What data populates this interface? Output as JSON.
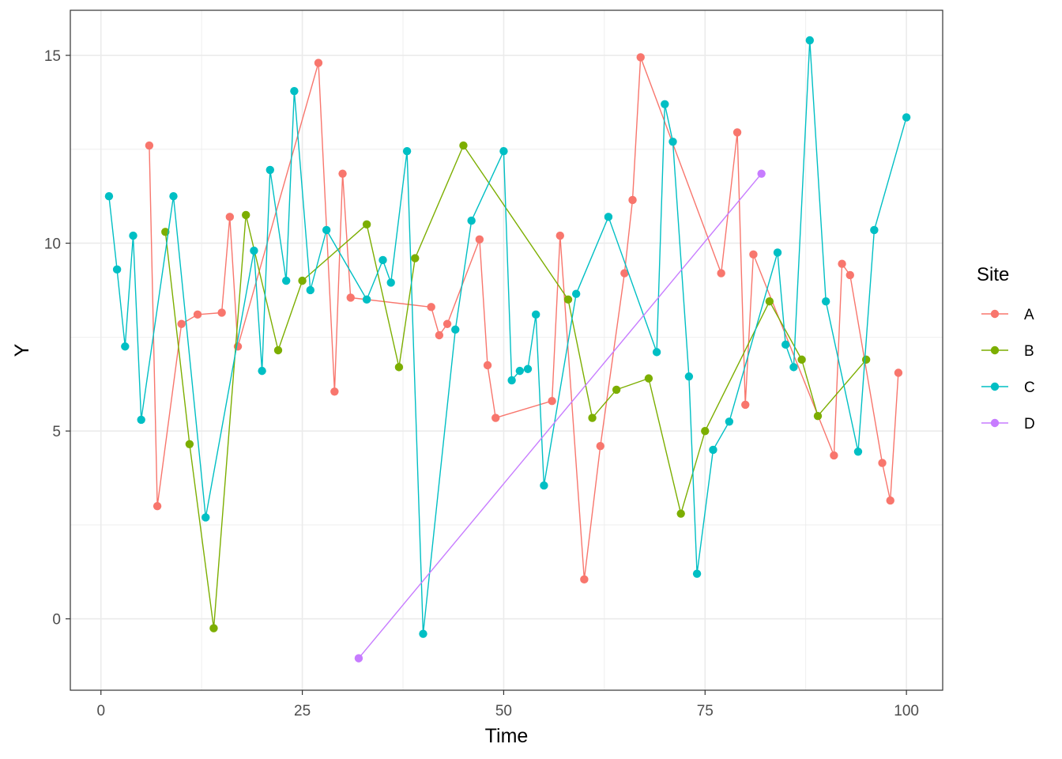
{
  "chart_data": {
    "type": "line",
    "xlabel": "Time",
    "ylabel": "Y",
    "xlim": [
      -3.8,
      104.5
    ],
    "ylim": [
      -1.9,
      16.2
    ],
    "x_ticks": [
      0,
      25,
      50,
      75,
      100
    ],
    "y_ticks": [
      0,
      5,
      10,
      15
    ],
    "grid": true,
    "legend": {
      "title": "Site",
      "position": "right"
    },
    "series": [
      {
        "name": "A",
        "color": "#F8766D",
        "points": [
          [
            6,
            12.6
          ],
          [
            7,
            3.0
          ],
          [
            10,
            7.85
          ],
          [
            12,
            8.1
          ],
          [
            15,
            8.15
          ],
          [
            16,
            10.7
          ],
          [
            17,
            7.25
          ],
          [
            27,
            14.8
          ],
          [
            29,
            6.05
          ],
          [
            30,
            11.85
          ],
          [
            31,
            8.55
          ],
          [
            41,
            8.3
          ],
          [
            42,
            7.55
          ],
          [
            43,
            7.85
          ],
          [
            47,
            10.1
          ],
          [
            48,
            6.75
          ],
          [
            49,
            5.35
          ],
          [
            56,
            5.8
          ],
          [
            57,
            10.2
          ],
          [
            60,
            1.05
          ],
          [
            62,
            4.6
          ],
          [
            65,
            9.2
          ],
          [
            66,
            11.15
          ],
          [
            67,
            14.95
          ],
          [
            77,
            9.2
          ],
          [
            79,
            12.95
          ],
          [
            80,
            5.7
          ],
          [
            81,
            9.7
          ],
          [
            91,
            4.35
          ],
          [
            92,
            9.45
          ],
          [
            93,
            9.15
          ],
          [
            97,
            4.15
          ],
          [
            98,
            3.15
          ],
          [
            99,
            6.55
          ]
        ]
      },
      {
        "name": "B",
        "color": "#7CAE00",
        "points": [
          [
            8,
            10.3
          ],
          [
            11,
            4.65
          ],
          [
            14,
            -0.25
          ],
          [
            18,
            10.75
          ],
          [
            22,
            7.15
          ],
          [
            25,
            9.0
          ],
          [
            33,
            10.5
          ],
          [
            37,
            6.7
          ],
          [
            39,
            9.6
          ],
          [
            45,
            12.6
          ],
          [
            58,
            8.5
          ],
          [
            61,
            5.35
          ],
          [
            64,
            6.1
          ],
          [
            68,
            6.4
          ],
          [
            72,
            2.8
          ],
          [
            75,
            5.0
          ],
          [
            83,
            8.45
          ],
          [
            87,
            6.9
          ],
          [
            89,
            5.4
          ],
          [
            95,
            6.9
          ]
        ]
      },
      {
        "name": "C",
        "color": "#00BFC4",
        "points": [
          [
            1,
            11.25
          ],
          [
            2,
            9.3
          ],
          [
            3,
            7.25
          ],
          [
            4,
            10.2
          ],
          [
            5,
            5.3
          ],
          [
            9,
            11.25
          ],
          [
            13,
            2.7
          ],
          [
            19,
            9.8
          ],
          [
            20,
            6.6
          ],
          [
            21,
            11.95
          ],
          [
            23,
            9.0
          ],
          [
            24,
            14.05
          ],
          [
            26,
            8.75
          ],
          [
            28,
            10.35
          ],
          [
            33,
            8.5
          ],
          [
            35,
            9.55
          ],
          [
            36,
            8.95
          ],
          [
            38,
            12.45
          ],
          [
            40,
            -0.4
          ],
          [
            44,
            7.7
          ],
          [
            46,
            10.6
          ],
          [
            50,
            12.45
          ],
          [
            51,
            6.35
          ],
          [
            52,
            6.6
          ],
          [
            53,
            6.65
          ],
          [
            54,
            8.1
          ],
          [
            55,
            3.55
          ],
          [
            59,
            8.65
          ],
          [
            63,
            10.7
          ],
          [
            69,
            7.1
          ],
          [
            70,
            13.7
          ],
          [
            71,
            12.7
          ],
          [
            73,
            6.45
          ],
          [
            74,
            1.2
          ],
          [
            76,
            4.5
          ],
          [
            78,
            5.25
          ],
          [
            84,
            9.75
          ],
          [
            85,
            7.3
          ],
          [
            86,
            6.7
          ],
          [
            88,
            15.4
          ],
          [
            90,
            8.45
          ],
          [
            94,
            4.45
          ],
          [
            96,
            10.35
          ],
          [
            100,
            13.35
          ]
        ]
      },
      {
        "name": "D",
        "color": "#C77CFF",
        "points": [
          [
            32,
            -1.05
          ],
          [
            82,
            11.85
          ]
        ]
      }
    ]
  }
}
